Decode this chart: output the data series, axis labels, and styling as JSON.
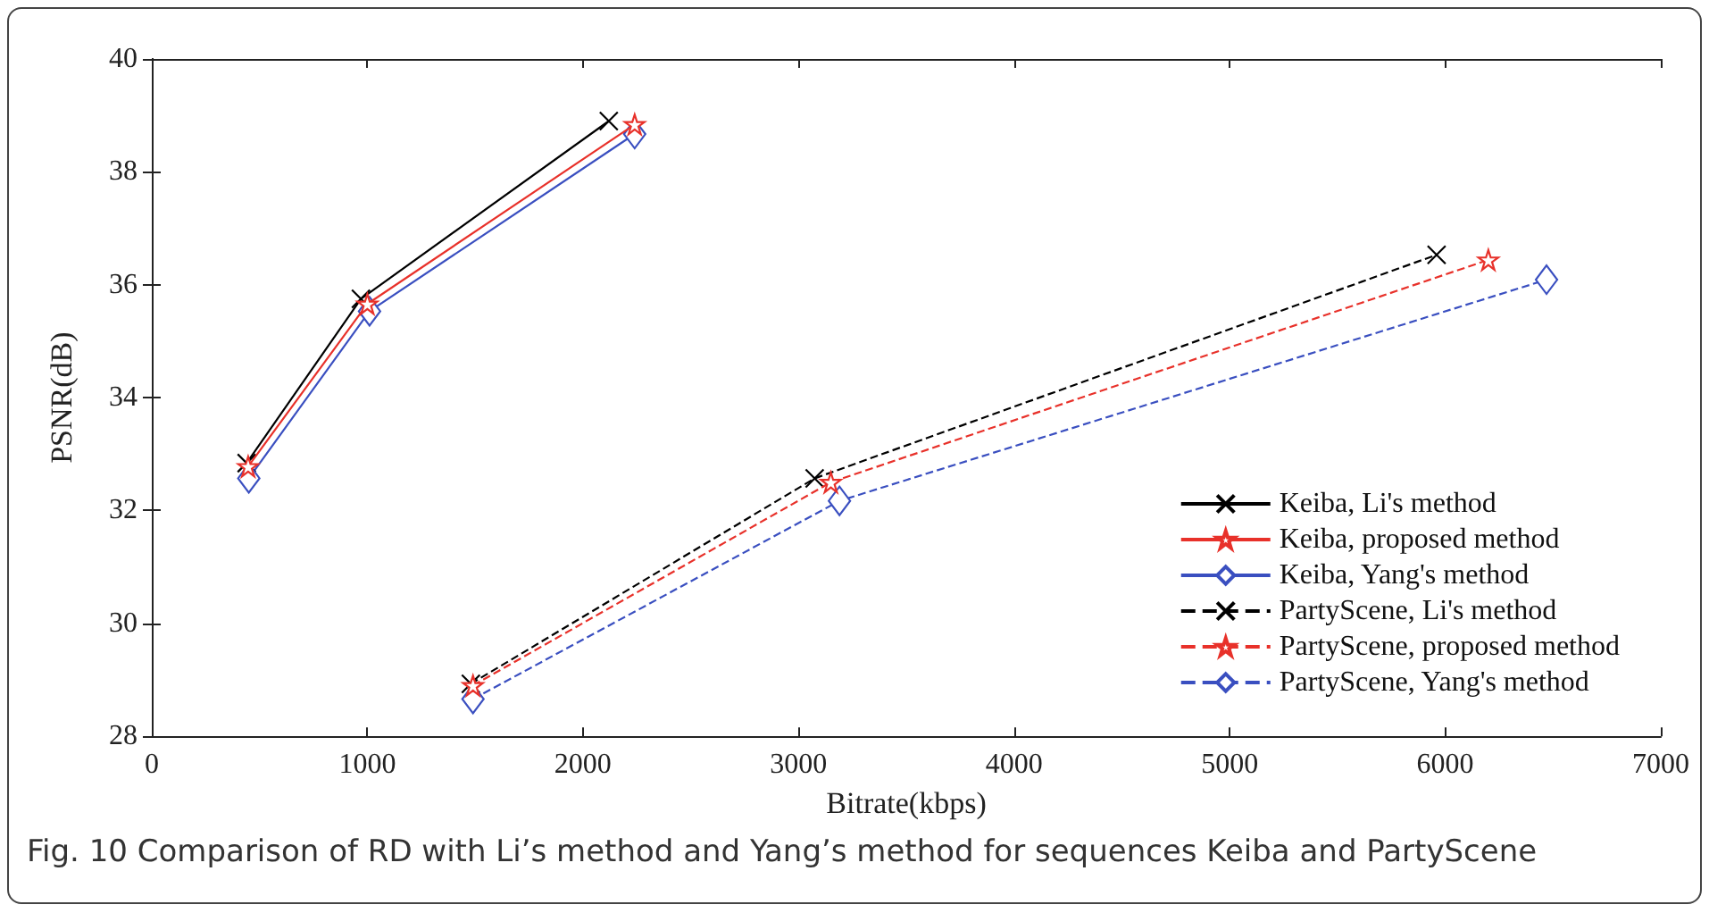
{
  "chart_data": {
    "type": "line",
    "xlabel": "Bitrate(kbps)",
    "ylabel": "PSNR(dB)",
    "xlim": [
      0,
      7000
    ],
    "xticks": [
      0,
      1000,
      2000,
      3000,
      4000,
      5000,
      6000,
      7000
    ],
    "ylim": [
      28,
      40
    ],
    "yticks": [
      28,
      30,
      32,
      34,
      36,
      38,
      40
    ],
    "grid": false,
    "legend": "bottom right",
    "annotations": [
      "Fig. 10 Comparison of RD with Li’s method and Yang’s method for sequences Keiba and PartyScene"
    ],
    "series": [
      {
        "name": "Keiba, Li's method",
        "color": "#000000",
        "marker": "cross",
        "line_style": "solid",
        "x": [
          440,
          970,
          2120
        ],
        "values": [
          32.84,
          35.75,
          38.9
        ]
      },
      {
        "name": "Keiba, proposed method",
        "color": "#e8312a",
        "marker": "star",
        "line_style": "solid",
        "x": [
          447,
          1000,
          2240
        ],
        "values": [
          32.78,
          35.66,
          38.84
        ]
      },
      {
        "name": "Keiba, Yang's method",
        "color": "#3a4fc0",
        "marker": "diamond",
        "line_style": "solid",
        "x": [
          450,
          1010,
          2240
        ],
        "values": [
          32.57,
          35.53,
          38.67
        ]
      },
      {
        "name": "PartyScene, Li's method",
        "color": "#000000",
        "marker": "cross",
        "line_style": "dashed",
        "x": [
          1480,
          3075,
          5960
        ],
        "values": [
          28.93,
          32.57,
          36.53
        ]
      },
      {
        "name": "PartyScene, proposed method",
        "color": "#e8312a",
        "marker": "star",
        "line_style": "dashed",
        "x": [
          1490,
          3150,
          6200
        ],
        "values": [
          28.9,
          32.5,
          36.44
        ]
      },
      {
        "name": "PartyScene, Yang's method",
        "color": "#3a4fc0",
        "marker": "diamond",
        "line_style": "dashed",
        "x": [
          1490,
          3190,
          6470
        ],
        "values": [
          28.66,
          32.17,
          36.09
        ]
      }
    ]
  }
}
